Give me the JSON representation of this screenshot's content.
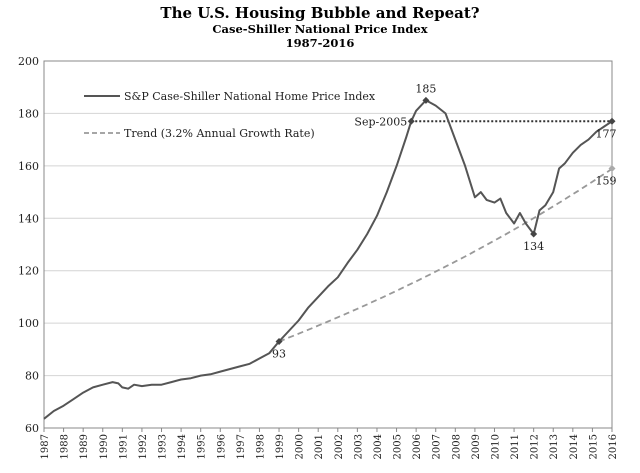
{
  "chart_data": {
    "type": "line",
    "title": "The U.S. Housing Bubble and Repeat?",
    "subtitle": "Case-Shiller National Price Index",
    "subtitle2": "1987-2016",
    "xlabel": "",
    "ylabel": "",
    "xlim": [
      1987,
      2016
    ],
    "ylim": [
      60,
      200
    ],
    "y_ticks": [
      60,
      80,
      100,
      120,
      140,
      160,
      180,
      200
    ],
    "x_ticks": [
      "1987",
      "1988",
      "1989",
      "1990",
      "1991",
      "1992",
      "1993",
      "1994",
      "1995",
      "1996",
      "1997",
      "1998",
      "1999",
      "2000",
      "2001",
      "2002",
      "2003",
      "2004",
      "2005",
      "2006",
      "2007",
      "2008",
      "2009",
      "2010",
      "2011",
      "2012",
      "2013",
      "2014",
      "2015",
      "2016"
    ],
    "grid": "horizontal",
    "legend_position": "top-left",
    "series": [
      {
        "name": "S&P Case-Shiller National Home Price Index",
        "color": "#555555",
        "style": "solid",
        "points": [
          [
            1987.0,
            63.5
          ],
          [
            1987.5,
            66.5
          ],
          [
            1988.0,
            68.5
          ],
          [
            1988.5,
            71
          ],
          [
            1989.0,
            73.5
          ],
          [
            1989.5,
            75.5
          ],
          [
            1990.0,
            76.5
          ],
          [
            1990.5,
            77.5
          ],
          [
            1990.8,
            77
          ],
          [
            1991.0,
            75.5
          ],
          [
            1991.3,
            75
          ],
          [
            1991.6,
            76.5
          ],
          [
            1992.0,
            76
          ],
          [
            1992.5,
            76.5
          ],
          [
            1993.0,
            76.5
          ],
          [
            1993.5,
            77.5
          ],
          [
            1994.0,
            78.5
          ],
          [
            1994.5,
            79
          ],
          [
            1995.0,
            80
          ],
          [
            1995.5,
            80.5
          ],
          [
            1996.0,
            81.5
          ],
          [
            1996.5,
            82.5
          ],
          [
            1997.0,
            83.5
          ],
          [
            1997.5,
            84.5
          ],
          [
            1998.0,
            86.5
          ],
          [
            1998.5,
            88.5
          ],
          [
            1999.0,
            93
          ],
          [
            1999.5,
            97
          ],
          [
            2000.0,
            101
          ],
          [
            2000.5,
            106
          ],
          [
            2001.0,
            110
          ],
          [
            2001.5,
            114
          ],
          [
            2002.0,
            117.5
          ],
          [
            2002.5,
            123
          ],
          [
            2003.0,
            128
          ],
          [
            2003.5,
            134
          ],
          [
            2004.0,
            141
          ],
          [
            2004.5,
            150
          ],
          [
            2005.0,
            160
          ],
          [
            2005.5,
            171
          ],
          [
            2005.75,
            177
          ],
          [
            2006.0,
            181
          ],
          [
            2006.5,
            185
          ],
          [
            2007.0,
            183
          ],
          [
            2007.5,
            180
          ],
          [
            2008.0,
            170
          ],
          [
            2008.5,
            160
          ],
          [
            2009.0,
            148
          ],
          [
            2009.3,
            150
          ],
          [
            2009.6,
            147
          ],
          [
            2010.0,
            146
          ],
          [
            2010.3,
            147.5
          ],
          [
            2010.6,
            142
          ],
          [
            2011.0,
            138
          ],
          [
            2011.3,
            142
          ],
          [
            2011.6,
            138
          ],
          [
            2012.0,
            134
          ],
          [
            2012.3,
            143
          ],
          [
            2012.6,
            145
          ],
          [
            2013.0,
            150
          ],
          [
            2013.3,
            159
          ],
          [
            2013.6,
            161
          ],
          [
            2014.0,
            165
          ],
          [
            2014.4,
            168
          ],
          [
            2014.8,
            170
          ],
          [
            2015.2,
            173
          ],
          [
            2015.6,
            175
          ],
          [
            2016.0,
            177
          ]
        ]
      },
      {
        "name": "Trend (3.2% Annual Growth Rate)",
        "color": "#999999",
        "style": "dashed",
        "start": [
          1999.0,
          93
        ],
        "end": [
          2016.0,
          159
        ],
        "growth_rate": 0.032
      }
    ],
    "reference_line": {
      "y": 177,
      "from_x": 2005.75,
      "to_x": 2016.0,
      "style": "dotted",
      "label": "Sep-2005"
    },
    "annotations": [
      {
        "label": "93",
        "x": 1999.0,
        "y": 93,
        "position": "below"
      },
      {
        "label": "185",
        "x": 2006.5,
        "y": 185,
        "position": "above"
      },
      {
        "label": "134",
        "x": 2012.0,
        "y": 134,
        "position": "below"
      },
      {
        "label": "177",
        "x": 2016.0,
        "y": 177,
        "position": "below"
      },
      {
        "label": "159",
        "x": 2016.0,
        "y": 159,
        "position": "below"
      }
    ]
  }
}
